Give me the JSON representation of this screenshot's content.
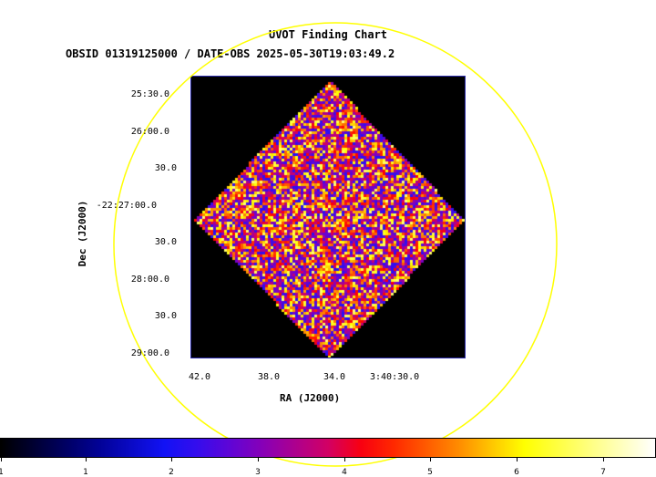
{
  "chart_data": {
    "type": "heatmap",
    "title": "UVOT Finding Chart",
    "subtitle": "OBSID 01319125000 / DATE-OBS 2025-05-30T19:03:49.2",
    "xlabel": "RA (J2000)",
    "ylabel": "Dec (J2000)",
    "x_ticks": [
      "42.0",
      "38.0",
      "34.0",
      "3:40:30.0"
    ],
    "y_ticks": [
      "25:30.0",
      "26:00.0",
      "30.0",
      "-22:27:00.0",
      "30.0",
      "28:00.0",
      "30.0",
      "29:00.0"
    ],
    "colorbar": {
      "ticks": [
        "1",
        "1",
        "2",
        "3",
        "4",
        "5",
        "6",
        "7"
      ],
      "colormap": "heat-blue"
    },
    "overlay_circle_color": "#ffff00",
    "background_color": "#000000"
  }
}
